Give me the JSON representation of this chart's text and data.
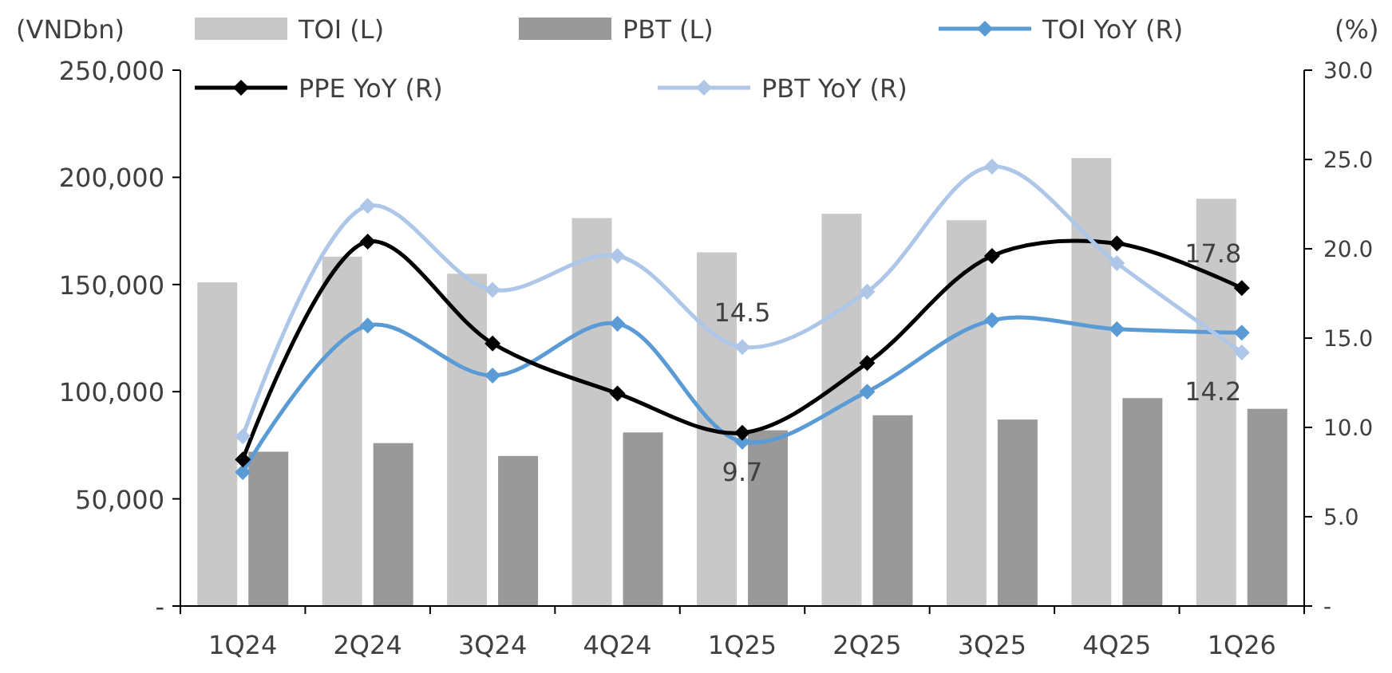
{
  "chart_data": {
    "type": "bar",
    "categories": [
      "1Q24",
      "2Q24",
      "3Q24",
      "4Q24",
      "1Q25",
      "2Q25",
      "3Q25",
      "4Q25",
      "1Q26"
    ],
    "ylabel": "(VNDbn)",
    "y2label": "(%)",
    "ylim": [
      0,
      250000
    ],
    "yticks": [
      {
        "value": 0,
        "label": "-"
      },
      {
        "value": 50000,
        "label": "50,000"
      },
      {
        "value": 100000,
        "label": "100,000"
      },
      {
        "value": 150000,
        "label": "150,000"
      },
      {
        "value": 200000,
        "label": "200,000"
      },
      {
        "value": 250000,
        "label": "250,000"
      }
    ],
    "y2lim": [
      0,
      30
    ],
    "y2ticks": [
      {
        "value": 0,
        "label": "-"
      },
      {
        "value": 5,
        "label": "5.0"
      },
      {
        "value": 10,
        "label": "10.0"
      },
      {
        "value": 15,
        "label": "15.0"
      },
      {
        "value": 20,
        "label": "20.0"
      },
      {
        "value": 25,
        "label": "25.0"
      },
      {
        "value": 30,
        "label": "30.0"
      }
    ],
    "legend": "top",
    "grid": false,
    "series": [
      {
        "name": "TOI (L)",
        "color": "#c8c8c8",
        "values": [
          151000,
          163000,
          155000,
          181000,
          165000,
          183000,
          180000,
          209000,
          190000
        ]
      },
      {
        "name": "PBT (L)",
        "color": "#999999",
        "values": [
          72000,
          76000,
          70000,
          81000,
          82000,
          89000,
          87000,
          97000,
          92000
        ]
      },
      {
        "name": "TOI YoY (R)",
        "type": "line",
        "axis": "y2",
        "color": "#5b9bd5",
        "marker": "diamond",
        "values": [
          7.5,
          15.7,
          12.9,
          15.8,
          9.2,
          12.0,
          16.0,
          15.5,
          15.3
        ]
      },
      {
        "name": "PPE YoY (R)",
        "type": "line",
        "axis": "y2",
        "color": "#000000",
        "marker": "diamond",
        "values": [
          8.2,
          20.4,
          14.7,
          11.9,
          9.7,
          13.6,
          19.6,
          20.3,
          17.8
        ],
        "value_labels": [
          null,
          null,
          null,
          null,
          "9.7",
          null,
          null,
          null,
          "17.8"
        ]
      },
      {
        "name": "PBT YoY (R)",
        "type": "line",
        "axis": "y2",
        "color": "#aec6e8",
        "marker": "diamond",
        "values": [
          9.5,
          22.4,
          17.7,
          19.6,
          14.5,
          17.6,
          24.6,
          19.2,
          14.2
        ],
        "value_labels": [
          null,
          null,
          null,
          null,
          "14.5",
          null,
          null,
          null,
          "14.2"
        ]
      }
    ]
  }
}
